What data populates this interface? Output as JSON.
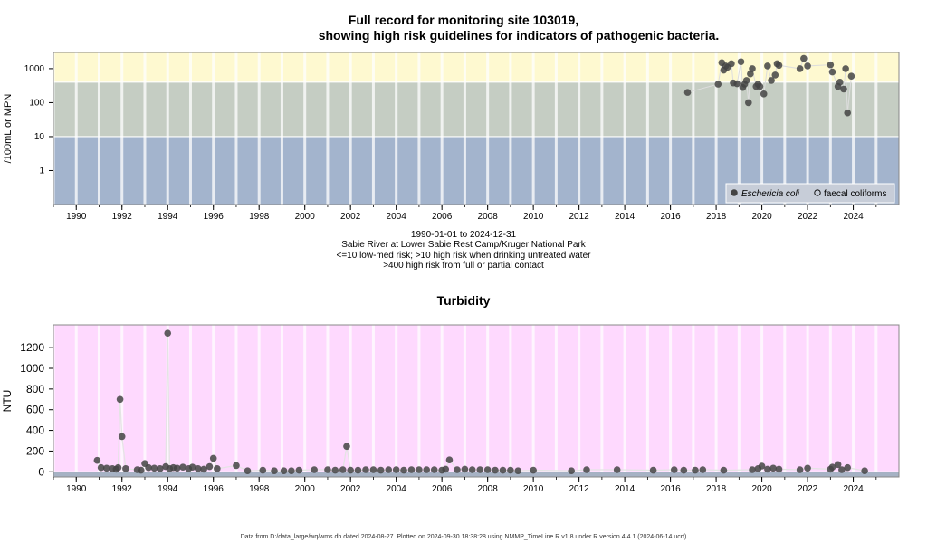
{
  "titles": {
    "main_line1": "Full record for monitoring site 103019,",
    "main_line2": "showing high risk guidelines for indicators of pathogenic bacteria.",
    "turbidity": "Turbidity"
  },
  "subtitle": {
    "date_range": "1990-01-01 to 2024-12-31",
    "site": "Sabie River at Lower Sabie Rest Camp/Kruger National Park",
    "risk1": "<=10 low-med risk; >10 high risk when drinking untreated water",
    "risk2": ">400 high risk from full or partial contact"
  },
  "footer": "Data from D:/data_large/wq/wms.db dated 2024-08-27. Plotted on 2024-09-30 18:38:28 using NMMP_TimeLine.R v1.8 under R version 4.4.1 (2024-06-14 ucrt)",
  "colors": {
    "band_low": "#a3b4cd",
    "band_mid": "#c5cdc3",
    "band_high": "#fef9d0",
    "turbidity_bg": "#fed9fe",
    "turbidity_base": "#a6b2c4",
    "point": "#444444"
  },
  "chart_data": [
    {
      "type": "scatter",
      "title": "Full record for monitoring site 103019, showing high risk guidelines for indicators of pathogenic bacteria.",
      "ylabel": "/100mL or MPN",
      "y_scale": "log",
      "xlim": [
        "1989-01-01",
        "2025-12-31"
      ],
      "ylim": [
        0.1,
        3000
      ],
      "y_ticks": [
        1,
        10,
        100,
        1000
      ],
      "x_ticks": [
        "1990",
        "1992",
        "1994",
        "1996",
        "1998",
        "2000",
        "2002",
        "2004",
        "2006",
        "2008",
        "2010",
        "2012",
        "2014",
        "2016",
        "2018",
        "2020",
        "2022",
        "2024"
      ],
      "bands": [
        {
          "from": 0.1,
          "to": 10,
          "color": "#a3b4cd"
        },
        {
          "from": 10,
          "to": 400,
          "color": "#c5cdc3"
        },
        {
          "from": 400,
          "to": 3000,
          "color": "#fef9d0"
        }
      ],
      "legend": {
        "position": "bottom-right",
        "entries": [
          "Eschericia coli",
          "faecal coliforms"
        ]
      },
      "series": [
        {
          "name": "Eschericia coli",
          "x": [
            "2016-10-01",
            "2018-02-01",
            "2018-04-01",
            "2018-05-01",
            "2018-06-01",
            "2018-07-01",
            "2018-09-01",
            "2018-10-01",
            "2018-12-01",
            "2019-02-01",
            "2019-03-01",
            "2019-04-01",
            "2019-05-01",
            "2019-06-01",
            "2019-07-01",
            "2019-08-01",
            "2019-10-01",
            "2019-11-01",
            "2019-12-01",
            "2020-02-01",
            "2020-04-01",
            "2020-06-01",
            "2020-08-01",
            "2020-09-01",
            "2020-10-01",
            "2021-09-01",
            "2021-11-01",
            "2022-01-01",
            "2023-01-01",
            "2023-02-01",
            "2023-05-01",
            "2023-06-01",
            "2023-08-01",
            "2023-09-01",
            "2023-10-01",
            "2023-12-01"
          ],
          "y": [
            200,
            350,
            1500,
            900,
            1200,
            1100,
            1400,
            380,
            360,
            1600,
            280,
            350,
            450,
            100,
            700,
            1000,
            300,
            350,
            300,
            180,
            1200,
            450,
            650,
            1400,
            1250,
            1000,
            2000,
            1200,
            1300,
            800,
            300,
            400,
            250,
            1000,
            50,
            600
          ]
        },
        {
          "name": "faecal coliforms",
          "x": [],
          "y": []
        }
      ]
    },
    {
      "type": "scatter",
      "title": "Turbidity",
      "ylabel": "NTU",
      "xlim": [
        "1989-01-01",
        "2025-12-31"
      ],
      "ylim": [
        -50,
        1420
      ],
      "y_ticks": [
        0,
        200,
        400,
        600,
        800,
        1000,
        1200
      ],
      "x_ticks": [
        "1990",
        "1992",
        "1994",
        "1996",
        "1998",
        "2000",
        "2002",
        "2004",
        "2006",
        "2008",
        "2010",
        "2012",
        "2014",
        "2016",
        "2018",
        "2020",
        "2022",
        "2024"
      ],
      "series": [
        {
          "name": "",
          "x": [
            "1990-12-01",
            "1991-02-01",
            "1991-05-01",
            "1991-08-01",
            "1991-10-01",
            "1991-11-01",
            "1991-12-01",
            "1992-01-01",
            "1992-03-01",
            "1992-09-01",
            "1992-11-01",
            "1993-01-01",
            "1993-03-01",
            "1993-06-01",
            "1993-09-01",
            "1993-12-01",
            "1994-01-01",
            "1994-02-01",
            "1994-04-01",
            "1994-06-01",
            "1994-09-01",
            "1994-12-01",
            "1995-02-01",
            "1995-05-01",
            "1995-08-01",
            "1995-11-01",
            "1996-01-01",
            "1996-03-01",
            "1997-01-01",
            "1997-07-01",
            "1998-03-01",
            "1998-09-01",
            "1999-02-01",
            "1999-06-01",
            "1999-10-01",
            "2000-06-01",
            "2001-01-01",
            "2001-05-01",
            "2001-09-01",
            "2001-11-01",
            "2002-01-01",
            "2002-05-01",
            "2002-09-01",
            "2003-01-01",
            "2003-05-01",
            "2003-09-01",
            "2004-01-01",
            "2004-05-01",
            "2004-09-01",
            "2005-01-01",
            "2005-05-01",
            "2005-09-01",
            "2006-01-01",
            "2006-03-01",
            "2006-05-01",
            "2006-09-01",
            "2007-01-01",
            "2007-05-01",
            "2007-09-01",
            "2008-01-01",
            "2008-05-01",
            "2008-09-01",
            "2009-01-01",
            "2009-05-01",
            "2010-01-01",
            "2011-09-01",
            "2012-05-01",
            "2013-09-01",
            "2015-04-01",
            "2016-03-01",
            "2016-08-01",
            "2017-02-01",
            "2017-06-01",
            "2018-05-01",
            "2019-08-01",
            "2019-11-01",
            "2020-01-01",
            "2020-04-01",
            "2020-07-01",
            "2020-10-01",
            "2021-09-01",
            "2022-01-01",
            "2023-01-01",
            "2023-02-01",
            "2023-05-01",
            "2023-07-01",
            "2023-10-01",
            "2024-07-01"
          ],
          "y": [
            110,
            40,
            35,
            30,
            25,
            40,
            700,
            340,
            30,
            20,
            15,
            80,
            40,
            35,
            30,
            50,
            1340,
            30,
            40,
            35,
            45,
            30,
            45,
            30,
            25,
            50,
            130,
            30,
            60,
            10,
            15,
            10,
            10,
            10,
            15,
            20,
            20,
            15,
            20,
            245,
            15,
            15,
            20,
            20,
            15,
            20,
            20,
            15,
            20,
            20,
            20,
            20,
            15,
            25,
            115,
            20,
            25,
            20,
            20,
            20,
            15,
            15,
            15,
            10,
            15,
            10,
            20,
            20,
            15,
            20,
            15,
            15,
            20,
            15,
            20,
            30,
            55,
            25,
            35,
            25,
            20,
            35,
            25,
            45,
            70,
            20,
            40,
            10
          ]
        }
      ]
    }
  ]
}
